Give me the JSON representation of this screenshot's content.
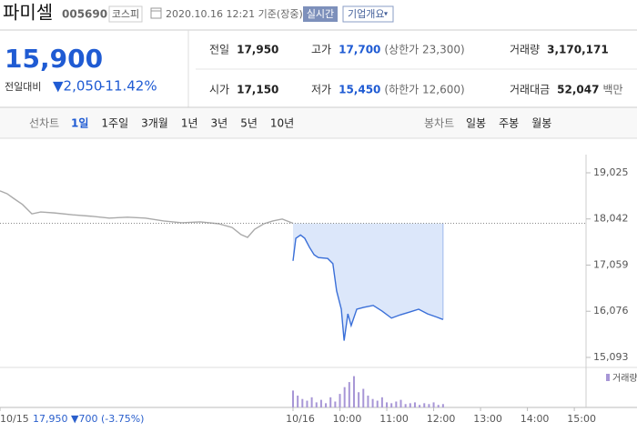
{
  "header": {
    "name": "파미셀",
    "code": "005690",
    "market": "코스피",
    "datetime": "2020.10.16 12:21 기준(장중)",
    "realtime_button": "실시간",
    "company_button": "기업개요"
  },
  "quote": {
    "price": "15,900",
    "change_label": "전일대비",
    "change": "▼2,050",
    "change_pct": "-11.42%"
  },
  "summary": {
    "rows": [
      [
        {
          "label": "전일",
          "value": "17,950"
        },
        {
          "label": "고가",
          "value": "17,700",
          "note": "(상한가 23,300)"
        },
        {
          "label": "거래량",
          "value": "3,170,171"
        }
      ],
      [
        {
          "label": "시가",
          "value": "17,150"
        },
        {
          "label": "저가",
          "value": "15,450",
          "note": "(하한가 12,600)"
        },
        {
          "label": "거래대금",
          "value": "52,047",
          "note": "백만"
        }
      ]
    ]
  },
  "tabs": {
    "line_label": "선차트",
    "line_periods": [
      "1일",
      "1주일",
      "3개월",
      "1년",
      "3년",
      "5년",
      "10년"
    ],
    "candle_label": "봉차트",
    "candle_periods": [
      "일봉",
      "주봉",
      "월봉"
    ]
  },
  "chart_data": {
    "type": "line",
    "xlim": [
      -6.25,
      6.25
    ],
    "ylim": [
      14957,
      19509
    ],
    "yticks": [
      {
        "value": 19025,
        "label": "19,025"
      },
      {
        "value": 18042,
        "label": "18,042"
      },
      {
        "value": 17059,
        "label": "17,059"
      },
      {
        "value": 16076,
        "label": "16,076"
      },
      {
        "value": 15093,
        "label": "15,093"
      }
    ],
    "xticks": [
      {
        "value": -6.25,
        "label": "10/15"
      },
      {
        "value": 0,
        "label": "10/16"
      },
      {
        "value": 1,
        "label": "10:00"
      },
      {
        "value": 2,
        "label": "11:00"
      },
      {
        "value": 3,
        "label": "12:00"
      },
      {
        "value": 4,
        "label": "13:00"
      },
      {
        "value": 5,
        "label": "14:00"
      },
      {
        "value": 6,
        "label": "15:00"
      }
    ],
    "prev_note": "17,950 ▼700 (-3.75%)",
    "baseline": 17950,
    "series": [
      {
        "color": "#aaaaaa",
        "x": [
          -6.25,
          -6.1,
          -5.96,
          -5.77,
          -5.57,
          -5.38,
          -5.09,
          -4.7,
          -4.31,
          -3.92,
          -3.53,
          -3.15,
          -2.76,
          -2.37,
          -1.98,
          -1.59,
          -1.3,
          -1.11,
          -0.97,
          -0.82,
          -0.62,
          -0.43,
          -0.23,
          0
        ],
        "values": [
          18640,
          18580,
          18480,
          18350,
          18150,
          18190,
          18170,
          18130,
          18100,
          18060,
          18080,
          18060,
          18000,
          17960,
          17980,
          17940,
          17860,
          17710,
          17650,
          17820,
          17940,
          18000,
          18040,
          17950
        ]
      },
      {
        "color": "#3a6fd8",
        "fill": "#dce7fa",
        "x": [
          0,
          0.06,
          0.16,
          0.25,
          0.35,
          0.45,
          0.54,
          0.74,
          0.85,
          0.93,
          1.03,
          1.09,
          1.17,
          1.24,
          1.36,
          1.51,
          1.71,
          1.9,
          2.1,
          2.29,
          2.49,
          2.68,
          2.87,
          3.07,
          3.2
        ],
        "values": [
          17150,
          17630,
          17700,
          17630,
          17440,
          17280,
          17220,
          17200,
          17090,
          16510,
          16120,
          15450,
          16020,
          15770,
          16120,
          16160,
          16200,
          16080,
          15930,
          16000,
          16060,
          16120,
          16020,
          15950,
          15900
        ]
      }
    ],
    "volume": {
      "name": "거래량",
      "color": "#a796d6",
      "ylim": [
        0,
        86000
      ],
      "x": [
        0,
        0.1,
        0.2,
        0.3,
        0.4,
        0.5,
        0.6,
        0.7,
        0.8,
        0.9,
        1.0,
        1.1,
        1.2,
        1.3,
        1.4,
        1.5,
        1.6,
        1.7,
        1.8,
        1.9,
        2.0,
        2.1,
        2.2,
        2.3,
        2.4,
        2.5,
        2.6,
        2.7,
        2.8,
        2.9,
        3.0,
        3.1,
        3.2
      ],
      "values": [
        40000,
        28000,
        20000,
        16000,
        24000,
        12000,
        18000,
        10000,
        24000,
        14000,
        32000,
        48000,
        60000,
        74000,
        36000,
        44000,
        28000,
        20000,
        16000,
        24000,
        12000,
        10000,
        14000,
        18000,
        8000,
        10000,
        12000,
        6000,
        10000,
        8000,
        12000,
        6000,
        8000
      ]
    }
  }
}
